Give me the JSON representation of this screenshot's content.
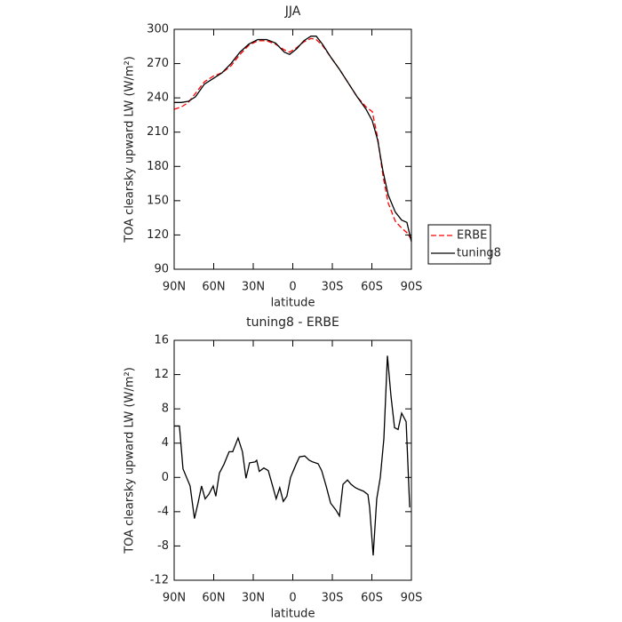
{
  "chart_data": [
    {
      "type": "line",
      "title": "JJA",
      "xlabel": "latitude",
      "ylabel": "TOA clearsky upward LW (W/m²)",
      "x": [
        90,
        84.6,
        79.2,
        73.8,
        67.1,
        60.3,
        53.6,
        46.9,
        40.1,
        33.4,
        26.6,
        19.9,
        13.1,
        6.4,
        2.4,
        -3,
        -8.4,
        -13.8,
        -17.8,
        -22.5,
        -28.6,
        -35.4,
        -42.1,
        -48.8,
        -55.6,
        -60.3,
        -64.4,
        -68.4,
        -72.4,
        -77.8,
        -82.6,
        -86.6,
        -90
      ],
      "series": [
        {
          "name": "ERBE",
          "color": "#ff0000",
          "dash": "dashed",
          "values": [
            230,
            232,
            236,
            244,
            254,
            259,
            262,
            268,
            278,
            286,
            290,
            290,
            287,
            282,
            280,
            284,
            289,
            292,
            291,
            286,
            276,
            265,
            253,
            241,
            232,
            228,
            205,
            172,
            148,
            132,
            126,
            122,
            116
          ]
        },
        {
          "name": "tuning8",
          "color": "#000000",
          "dash": "solid",
          "values": [
            236,
            236,
            237,
            241,
            252,
            257,
            262,
            270,
            280,
            287,
            291,
            291,
            288,
            280,
            278,
            283,
            290,
            294,
            294,
            287,
            276,
            265,
            253,
            241,
            230,
            220,
            203,
            176,
            155,
            140,
            133,
            131,
            114
          ]
        }
      ],
      "xlim": [
        90,
        -90
      ],
      "xticks": [
        {
          "value": 90,
          "label": "90N"
        },
        {
          "value": 60,
          "label": "60N"
        },
        {
          "value": 30,
          "label": "30N"
        },
        0,
        {
          "value": -30,
          "label": "30S"
        },
        {
          "value": -60,
          "label": "60S"
        },
        {
          "value": -90,
          "label": "90S"
        }
      ],
      "ylim": [
        90,
        300
      ],
      "yticks": [
        90,
        120,
        150,
        180,
        210,
        240,
        270,
        300
      ],
      "legend": "right"
    },
    {
      "type": "line",
      "title": "tuning8 - ERBE",
      "xlabel": "latitude",
      "ylabel": "TOA clearsky upward LW (W/m²)",
      "x": [
        90,
        86,
        83.3,
        77.9,
        74.6,
        71.9,
        69.2,
        66.5,
        63.8,
        60.4,
        58.4,
        55.7,
        52.3,
        48.3,
        45.6,
        41.5,
        38.2,
        35.5,
        32.8,
        28.7,
        27.4,
        25.4,
        22,
        18.6,
        15.3,
        12.6,
        9.9,
        7.2,
        4.5,
        1.7,
        -2.4,
        -5.1,
        -9.1,
        -12.5,
        -15.2,
        -19.2,
        -21.9,
        -25.3,
        -28.7,
        -32.7,
        -35.4,
        -38.1,
        -41.5,
        -44.2,
        -47.5,
        -50.2,
        -53.6,
        -57,
        -58.3,
        -61,
        -63.7,
        -66.4,
        -69.1,
        -71.8,
        -74.5,
        -77.2,
        -79.9,
        -82.6,
        -86,
        -88.7
      ],
      "color": "#000000",
      "values": [
        6,
        6,
        1,
        -1,
        -4.8,
        -3,
        -1,
        -2.5,
        -2,
        -1,
        -2.2,
        0.5,
        1.5,
        3,
        3,
        4.6,
        3,
        -0.1,
        1.7,
        1.8,
        2,
        0.7,
        1.1,
        0.8,
        -1,
        -2.5,
        -1.2,
        -2.8,
        -2.2,
        0,
        1.5,
        2.4,
        2.5,
        2,
        1.8,
        1.6,
        0.8,
        -1,
        -3,
        -3.8,
        -4.5,
        -0.8,
        -0.3,
        -0.8,
        -1.2,
        -1.4,
        -1.6,
        -2,
        -3.5,
        -9.1,
        -2.5,
        0,
        4.5,
        14.2,
        9.5,
        5.8,
        5.6,
        7.5,
        6.5,
        -3.5
      ],
      "xlim": [
        90,
        -90
      ],
      "xticks": [
        {
          "value": 90,
          "label": "90N"
        },
        {
          "value": 60,
          "label": "60N"
        },
        {
          "value": 30,
          "label": "30N"
        },
        0,
        {
          "value": -30,
          "label": "30S"
        },
        {
          "value": -60,
          "label": "60S"
        },
        {
          "value": -90,
          "label": "90S"
        }
      ],
      "ylim": [
        -12,
        16
      ],
      "yticks": [
        -12,
        -8,
        -4,
        0,
        4,
        8,
        12,
        16
      ]
    }
  ]
}
